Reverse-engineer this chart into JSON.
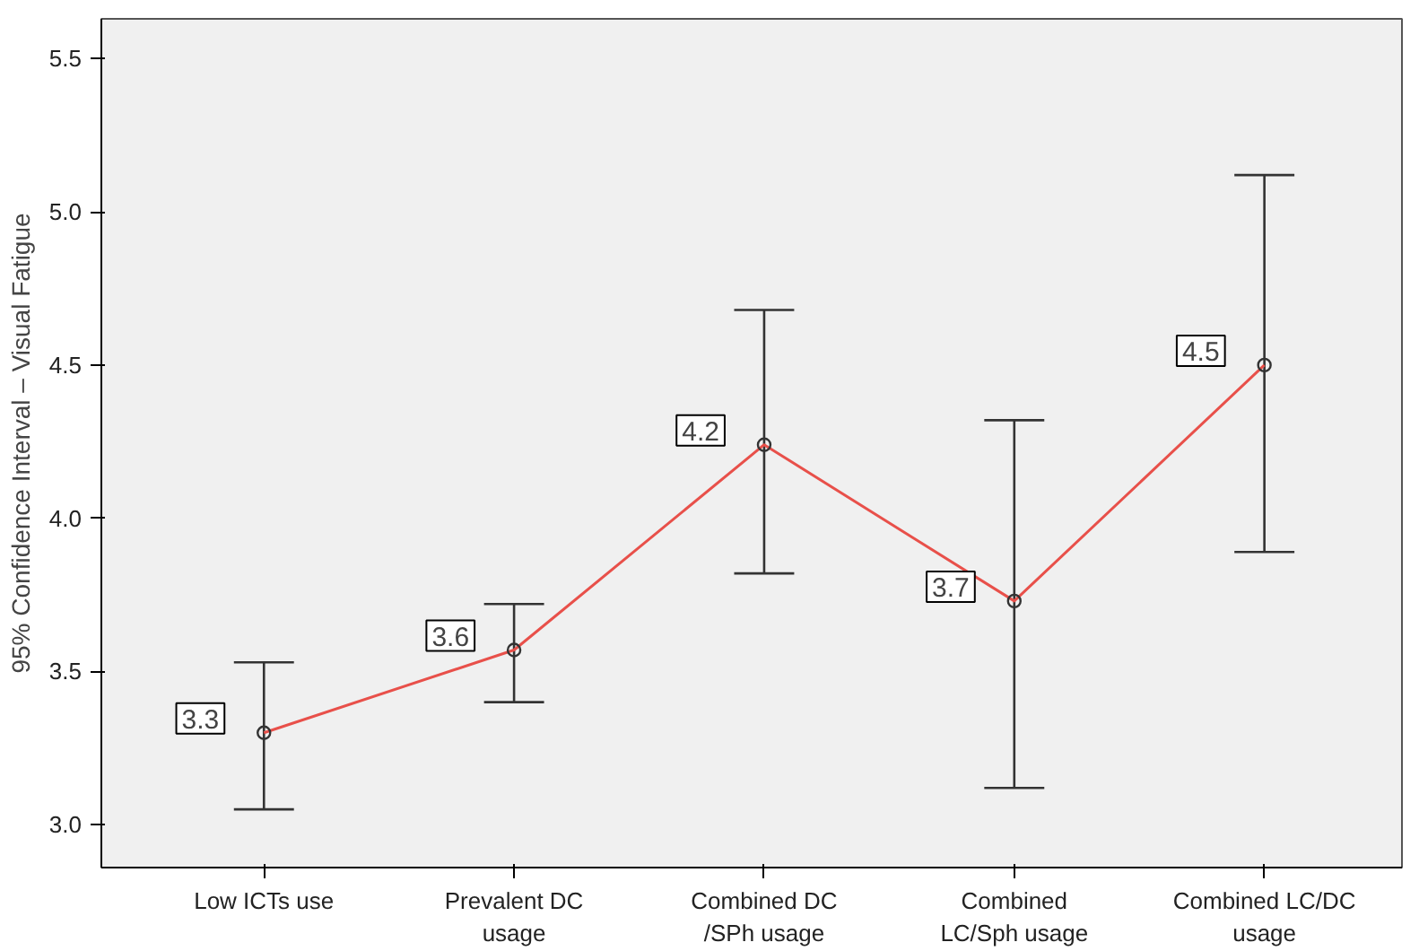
{
  "chart_data": {
    "type": "line",
    "ylabel": "95% Confidence Interval – Visual Fatigue",
    "categories": [
      "Low ICTs use",
      "Prevalent DC\nusage",
      "Combined DC\n/SPh usage",
      "Combined\nLC/Sph usage",
      "Combined LC/DC\nusage"
    ],
    "series": [
      {
        "color": "#e8504a",
        "values": [
          3.3,
          3.57,
          4.24,
          3.73,
          4.5
        ],
        "errors": [
          [
            3.05,
            3.53
          ],
          [
            3.4,
            3.72
          ],
          [
            3.82,
            4.68
          ],
          [
            3.12,
            4.32
          ],
          [
            3.89,
            5.12
          ]
        ],
        "value_labels": [
          "3.3",
          "3.6",
          "4.2",
          "3.7",
          "4.5"
        ]
      }
    ],
    "ylim": [
      2.86,
      5.63
    ],
    "yticks": [
      {
        "value": 3.0,
        "label": "3.0"
      },
      {
        "value": 3.5,
        "label": "3.5"
      },
      {
        "value": 4.0,
        "label": "4.0"
      },
      {
        "value": 4.5,
        "label": "4.5"
      },
      {
        "value": 5.0,
        "label": "5.0"
      },
      {
        "value": 5.5,
        "label": "5.5"
      }
    ],
    "marker": "circle",
    "line_style": "solid",
    "grid": false
  }
}
